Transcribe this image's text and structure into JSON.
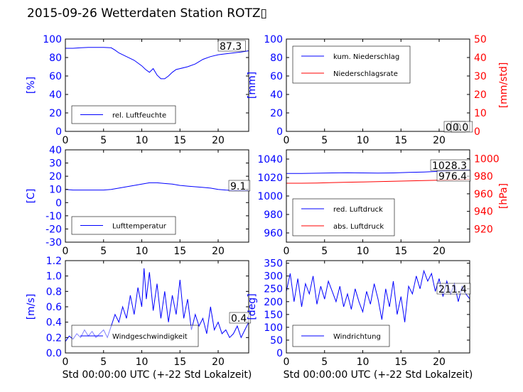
{
  "title": "2015-09-26 Wetterdaten Station ROTZ",
  "title_glyph": "▯",
  "colors": {
    "primary": "#0000ff",
    "secondary": "#ff0000",
    "text": "#000000",
    "light": "#8080ff"
  },
  "chart_data": [
    {
      "type": "line",
      "ylabel": "[%]",
      "xlim": [
        0,
        24
      ],
      "ylim": [
        0,
        100
      ],
      "xticks": [
        0,
        5,
        10,
        15,
        20
      ],
      "yticks": [
        0,
        20,
        40,
        60,
        80,
        100
      ],
      "legend": "bottom-left",
      "series": [
        {
          "name": "rel. Luftfeuchte",
          "color": "#0000ff",
          "x": [
            0,
            1,
            2,
            3,
            4,
            5,
            6,
            6.5,
            7,
            8,
            9,
            10,
            10.5,
            11,
            11.5,
            12,
            12.5,
            13,
            13.5,
            14,
            14.5,
            15,
            16,
            17,
            18,
            19,
            20,
            21,
            22,
            23,
            24
          ],
          "y": [
            90,
            90,
            90.5,
            91,
            91,
            91,
            90.5,
            88,
            85,
            81,
            77,
            71,
            67,
            64,
            68,
            61,
            57,
            57,
            60,
            64,
            67,
            68,
            70,
            73,
            78,
            81,
            83,
            84,
            85,
            86,
            87.3
          ]
        }
      ],
      "last_value": "87.3"
    },
    {
      "type": "line",
      "ylabel": "[mm]",
      "ylabel2": "[mm/std]",
      "xlim": [
        0,
        24
      ],
      "ylim": [
        0,
        100
      ],
      "ylim2": [
        0,
        50
      ],
      "xticks": [
        0,
        5,
        10,
        15,
        20
      ],
      "yticks": [
        0,
        20,
        40,
        60,
        80,
        100
      ],
      "yticks2": [
        0,
        10,
        20,
        30,
        40,
        50
      ],
      "legend": "top-left",
      "series": [
        {
          "name": "kum. Niederschlag",
          "color": "#0000ff",
          "axis": "left",
          "x": [
            0,
            24
          ],
          "y": [
            0,
            0
          ]
        },
        {
          "name": "Niederschlagsrate",
          "color": "#ff0000",
          "axis": "right",
          "x": [
            0,
            24
          ],
          "y": [
            0,
            0
          ]
        }
      ],
      "last_value": "0.0",
      "last_value2": "0.0"
    },
    {
      "type": "line",
      "ylabel": "[C]",
      "xlim": [
        0,
        24
      ],
      "ylim": [
        -30,
        40
      ],
      "xticks": [
        0,
        5,
        10,
        15,
        20
      ],
      "yticks": [
        -30,
        -20,
        -10,
        0,
        10,
        20,
        30,
        40
      ],
      "legend": "bottom-left",
      "series": [
        {
          "name": "Lufttemperatur",
          "color": "#0000ff",
          "x": [
            0,
            1,
            2,
            3,
            4,
            5,
            6,
            7,
            8,
            9,
            10,
            11,
            12,
            13,
            14,
            15,
            16,
            17,
            18,
            19,
            20,
            21,
            22,
            23,
            24
          ],
          "y": [
            10,
            9.5,
            9.5,
            9.5,
            9.5,
            9.5,
            10,
            11,
            12,
            13,
            14,
            15,
            15,
            14.5,
            14,
            13,
            12.5,
            12,
            11.5,
            11,
            10,
            9.5,
            9.2,
            9.1,
            9.1
          ]
        }
      ],
      "last_value": "9.1"
    },
    {
      "type": "line",
      "ylabel2": "[hPa]",
      "xlim": [
        0,
        24
      ],
      "ylim": [
        950,
        1050
      ],
      "ylim2": [
        905,
        1010
      ],
      "xticks": [
        0,
        5,
        10,
        15,
        20
      ],
      "yticks": [
        960,
        980,
        1000,
        1020,
        1040
      ],
      "yticks2": [
        920,
        940,
        960,
        980,
        1000
      ],
      "legend": "bottom-left",
      "series": [
        {
          "name": "red. Luftdruck",
          "color": "#0000ff",
          "axis": "left",
          "x": [
            0,
            2,
            4,
            6,
            8,
            10,
            12,
            14,
            16,
            18,
            20,
            22,
            24
          ],
          "y": [
            1024.5,
            1024.5,
            1024.7,
            1025,
            1025.2,
            1025,
            1024.8,
            1025,
            1025.5,
            1026,
            1026.8,
            1027.8,
            1028.3
          ]
        },
        {
          "name": "abs. Luftdruck",
          "color": "#ff0000",
          "axis": "right",
          "x": [
            0,
            2,
            4,
            6,
            8,
            10,
            12,
            14,
            16,
            18,
            20,
            22,
            24
          ],
          "y": [
            972,
            972,
            972.3,
            972.8,
            973.2,
            973.5,
            973.8,
            974.2,
            974.6,
            975,
            975.5,
            976,
            976.4
          ]
        }
      ],
      "last_value": "1028.3",
      "last_value2": "976.4"
    },
    {
      "type": "line",
      "ylabel": "[m/s]",
      "xlim": [
        0,
        24
      ],
      "ylim": [
        0,
        1.2
      ],
      "xticks": [
        0,
        5,
        10,
        15,
        20
      ],
      "yticks": [
        0.0,
        0.2,
        0.4,
        0.6,
        0.8,
        1.0,
        1.2
      ],
      "legend": "bottom-left",
      "series": [
        {
          "name": "Windgeschwindigkeit",
          "color": "#0000ff",
          "x": [
            0,
            0.5,
            1,
            1.5,
            2,
            2.5,
            3,
            3.5,
            4,
            4.5,
            5,
            5.5,
            6,
            6.5,
            7,
            7.5,
            8,
            8.5,
            9,
            9.5,
            10,
            10.3,
            10.6,
            11,
            11.5,
            12,
            12.5,
            13,
            13.5,
            14,
            14.5,
            15,
            15.5,
            16,
            16.5,
            17,
            17.5,
            18,
            18.5,
            19,
            19.5,
            20,
            20.5,
            21,
            21.5,
            22,
            22.5,
            23,
            23.5,
            24
          ],
          "y": [
            0.15,
            0.22,
            0.18,
            0.25,
            0.2,
            0.3,
            0.22,
            0.28,
            0.2,
            0.25,
            0.3,
            0.2,
            0.35,
            0.5,
            0.4,
            0.6,
            0.45,
            0.75,
            0.5,
            0.85,
            0.6,
            1.1,
            0.7,
            1.05,
            0.55,
            0.9,
            0.45,
            0.8,
            0.4,
            0.75,
            0.5,
            0.95,
            0.45,
            0.7,
            0.3,
            0.5,
            0.35,
            0.45,
            0.25,
            0.6,
            0.3,
            0.4,
            0.25,
            0.3,
            0.2,
            0.25,
            0.35,
            0.2,
            0.3,
            0.4
          ]
        }
      ],
      "last_value": "0.4"
    },
    {
      "type": "line",
      "ylabel": "[deg]",
      "xlim": [
        0,
        24
      ],
      "ylim": [
        0,
        360
      ],
      "xticks": [
        0,
        5,
        10,
        15,
        20
      ],
      "yticks": [
        0,
        50,
        100,
        150,
        200,
        250,
        300,
        350
      ],
      "legend": "bottom-left",
      "series": [
        {
          "name": "Windrichtung",
          "color": "#0000ff",
          "x": [
            0,
            0.5,
            1,
            1.5,
            2,
            2.5,
            3,
            3.5,
            4,
            4.5,
            5,
            5.5,
            6,
            6.5,
            7,
            7.5,
            8,
            8.5,
            9,
            9.5,
            10,
            10.5,
            11,
            11.5,
            12,
            12.5,
            13,
            13.5,
            14,
            14.5,
            15,
            15.5,
            16,
            16.5,
            17,
            17.5,
            18,
            18.5,
            19,
            19.5,
            20,
            20.5,
            21,
            21.5,
            22,
            22.5,
            23,
            23.5,
            24
          ],
          "y": [
            240,
            310,
            200,
            290,
            180,
            270,
            230,
            300,
            190,
            260,
            210,
            280,
            240,
            200,
            260,
            180,
            230,
            170,
            250,
            200,
            160,
            240,
            190,
            270,
            210,
            130,
            250,
            180,
            280,
            150,
            220,
            120,
            260,
            230,
            300,
            250,
            320,
            280,
            310,
            240,
            290,
            220,
            280,
            230,
            270,
            200,
            260,
            230,
            211
          ]
        }
      ],
      "last_value": "211.4"
    }
  ],
  "xlabel": "Std 00:00:00 UTC (+-22 Std Lokalzeit)"
}
